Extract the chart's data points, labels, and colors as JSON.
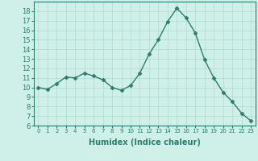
{
  "x": [
    0,
    1,
    2,
    3,
    4,
    5,
    6,
    7,
    8,
    9,
    10,
    11,
    12,
    13,
    14,
    15,
    16,
    17,
    18,
    19,
    20,
    21,
    22,
    23
  ],
  "y": [
    10.0,
    9.8,
    10.4,
    11.1,
    11.0,
    11.5,
    11.2,
    10.8,
    10.0,
    9.7,
    10.2,
    11.5,
    13.5,
    15.0,
    16.9,
    18.3,
    17.3,
    15.7,
    12.9,
    11.0,
    9.5,
    8.5,
    7.3,
    6.5
  ],
  "line_color": "#2d7d6e",
  "marker": "D",
  "marker_size": 2.5,
  "bg_color": "#cef0e8",
  "grid_color": "#b0d8d0",
  "xlabel": "Humidex (Indice chaleur)",
  "ylim": [
    6,
    19
  ],
  "xlim": [
    -0.5,
    23.5
  ],
  "yticks": [
    6,
    7,
    8,
    9,
    10,
    11,
    12,
    13,
    14,
    15,
    16,
    17,
    18
  ],
  "xticks": [
    0,
    1,
    2,
    3,
    4,
    5,
    6,
    7,
    8,
    9,
    10,
    11,
    12,
    13,
    14,
    15,
    16,
    17,
    18,
    19,
    20,
    21,
    22,
    23
  ],
  "xtick_labels": [
    "0",
    "1",
    "2",
    "3",
    "4",
    "5",
    "6",
    "7",
    "8",
    "9",
    "10",
    "11",
    "12",
    "13",
    "14",
    "15",
    "16",
    "17",
    "18",
    "19",
    "20",
    "21",
    "22",
    "23"
  ],
  "tick_color": "#2d7d6e",
  "axis_color": "#2d7d6e",
  "xlabel_fontsize": 7,
  "ytick_fontsize": 6,
  "xtick_fontsize": 5
}
